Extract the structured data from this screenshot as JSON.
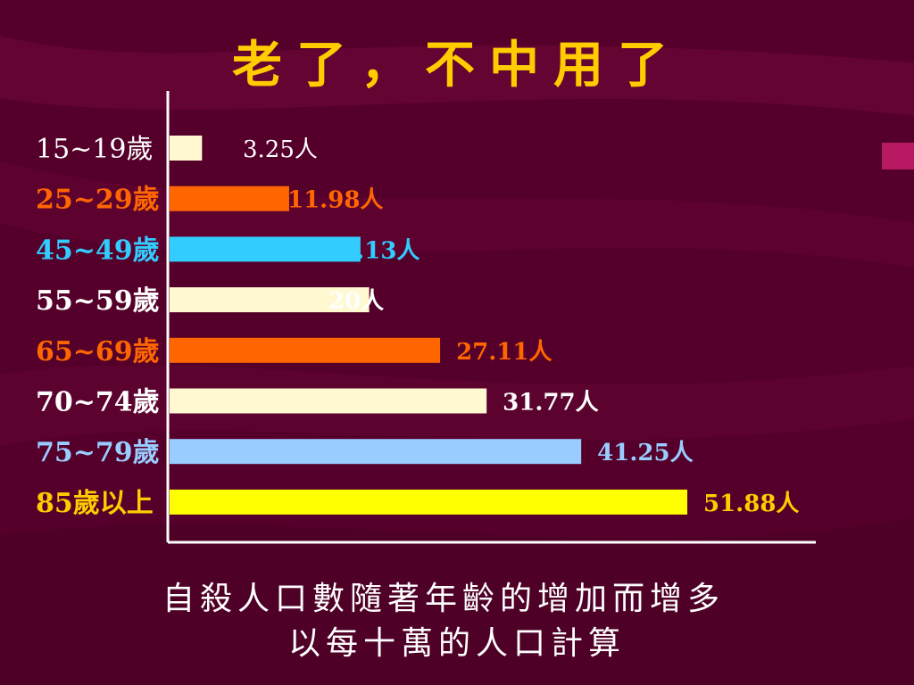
{
  "theme": {
    "background": "#55002a",
    "title_color": "#ffcc00",
    "axis_color": "#ffffff"
  },
  "slide": {
    "title": "老了，不中用了",
    "caption_line1": "自殺人口數隨著年齡的增加而增多",
    "caption_line2": "以每十萬的人口計算"
  },
  "chart_data": {
    "type": "bar",
    "orientation": "horizontal",
    "categories": [
      "15~19歲",
      "25~29歲",
      "45~49歲",
      "55~59歲",
      "65~69歲",
      "70~74歲",
      "75~79歲",
      "85歲以上"
    ],
    "values": [
      3.25,
      11.98,
      19.13,
      20,
      27.11,
      31.77,
      41.25,
      51.88
    ],
    "value_labels": [
      "3.25人",
      "11.98人",
      "19.13人",
      "20人",
      "27.11人",
      "31.77人",
      "41.25人",
      "51.88人"
    ],
    "colors": [
      "#fff8d0",
      "#ff6600",
      "#33ccff",
      "#fff8d0",
      "#ff6600",
      "#fff8d0",
      "#99ccff",
      "#ffff00"
    ],
    "category_label_colors": [
      "#ffffff",
      "#ff6600",
      "#33ccff",
      "#ffffff",
      "#ff6600",
      "#ffffff",
      "#99ccff",
      "#ffcc00"
    ],
    "value_label_colors": [
      "#ffffff",
      "#ff6600",
      "#33ccff",
      "#ffffff",
      "#ff6600",
      "#ffffff",
      "#99ccff",
      "#ffcc00"
    ],
    "xlim": [
      0,
      54
    ],
    "grid": false,
    "legend": "none"
  }
}
